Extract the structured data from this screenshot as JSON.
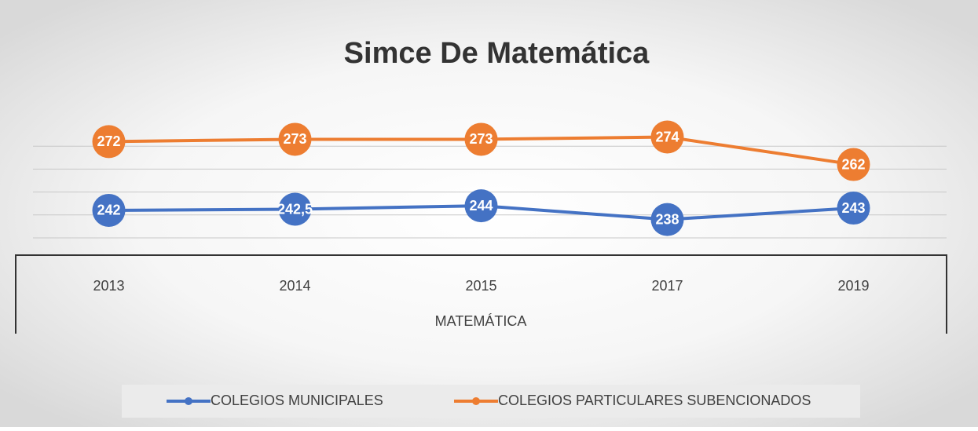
{
  "chart_data": {
    "type": "line",
    "title": "Simce De Matemática",
    "categories": [
      "2013",
      "2014",
      "2015",
      "2017",
      "2019"
    ],
    "xlabel": "MATEMÁTICA",
    "series": [
      {
        "name": "COLEGIOS MUNICIPALES",
        "color": "#4472c4",
        "values": [
          242,
          242.5,
          244,
          238,
          243
        ],
        "value_labels": [
          "242",
          "242,5",
          "244",
          "238",
          "243"
        ]
      },
      {
        "name": "COLEGIOS PARTICULARES  SUBENCIONADOS",
        "color": "#ed7d31",
        "values": [
          272,
          273,
          273,
          274,
          262
        ],
        "value_labels": [
          "272",
          "273",
          "273",
          "274",
          "262"
        ]
      }
    ],
    "ylim": [
      230,
      280
    ],
    "yticks": [
      230,
      240,
      250,
      260,
      270
    ],
    "grid": true
  }
}
